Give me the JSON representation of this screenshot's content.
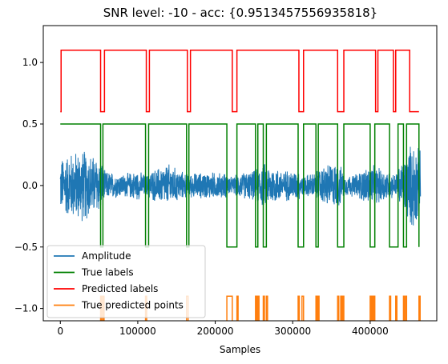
{
  "chart_data": {
    "type": "line",
    "title": "SNR level: -10 - acc: {0.9513457556935818}",
    "xlabel": "Samples",
    "ylabel": "",
    "xlim": [
      -22000,
      486000
    ],
    "ylim": [
      -1.1,
      1.3
    ],
    "grid": false,
    "legend_position": "lower-left",
    "x_ticks": [
      0,
      100000,
      200000,
      300000,
      400000
    ],
    "x_tick_labels": [
      "0",
      "100000",
      "200000",
      "300000",
      "400000"
    ],
    "y_ticks": [
      -1.0,
      -0.5,
      0.0,
      0.5,
      1.0
    ],
    "y_tick_labels": [
      "−1.0",
      "−0.5",
      "0.0",
      "0.5",
      "1.0"
    ],
    "series": [
      {
        "name": "Amplitude",
        "color": "#1f77b4",
        "style": "noise",
        "x_range": [
          0,
          465000
        ],
        "envelope": [
          [
            0,
            0.24
          ],
          [
            15000,
            0.3
          ],
          [
            30000,
            0.32
          ],
          [
            45000,
            0.26
          ],
          [
            52000,
            0.24
          ],
          [
            57000,
            0.13
          ],
          [
            80000,
            0.1
          ],
          [
            100000,
            0.13
          ],
          [
            112000,
            0.09
          ],
          [
            116000,
            0.13
          ],
          [
            140000,
            0.19
          ],
          [
            155000,
            0.13
          ],
          [
            165000,
            0.1
          ],
          [
            170000,
            0.11
          ],
          [
            190000,
            0.12
          ],
          [
            215000,
            0.11
          ],
          [
            222000,
            0.07
          ],
          [
            230000,
            0.11
          ],
          [
            250000,
            0.13
          ],
          [
            262000,
            0.2
          ],
          [
            285000,
            0.14
          ],
          [
            308000,
            0.13
          ],
          [
            313000,
            0.09
          ],
          [
            330000,
            0.12
          ],
          [
            345000,
            0.2
          ],
          [
            360000,
            0.2
          ],
          [
            367000,
            0.09
          ],
          [
            380000,
            0.1
          ],
          [
            400000,
            0.18
          ],
          [
            420000,
            0.14
          ],
          [
            432000,
            0.1
          ],
          [
            445000,
            0.26
          ],
          [
            455000,
            0.4
          ],
          [
            465000,
            0.3
          ]
        ]
      },
      {
        "name": "True labels",
        "color": "#008000",
        "style": "step",
        "points": [
          [
            0,
            0.5
          ],
          [
            52000,
            0.5
          ],
          [
            52000,
            -0.5
          ],
          [
            55000,
            -0.5
          ],
          [
            55000,
            0.5
          ],
          [
            110000,
            0.5
          ],
          [
            110000,
            -0.5
          ],
          [
            114000,
            -0.5
          ],
          [
            114000,
            0.5
          ],
          [
            163000,
            0.5
          ],
          [
            163000,
            -0.5
          ],
          [
            166000,
            -0.5
          ],
          [
            166000,
            0.5
          ],
          [
            215000,
            0.5
          ],
          [
            215000,
            -0.5
          ],
          [
            228000,
            -0.5
          ],
          [
            228000,
            0.5
          ],
          [
            252000,
            0.5
          ],
          [
            252000,
            -0.5
          ],
          [
            255000,
            -0.5
          ],
          [
            255000,
            0.5
          ],
          [
            262000,
            0.5
          ],
          [
            262000,
            -0.5
          ],
          [
            266000,
            -0.5
          ],
          [
            266000,
            0.5
          ],
          [
            307000,
            0.5
          ],
          [
            307000,
            -0.5
          ],
          [
            314000,
            -0.5
          ],
          [
            314000,
            0.5
          ],
          [
            330000,
            0.5
          ],
          [
            330000,
            -0.5
          ],
          [
            333000,
            -0.5
          ],
          [
            333000,
            0.5
          ],
          [
            358000,
            0.5
          ],
          [
            358000,
            -0.5
          ],
          [
            366000,
            -0.5
          ],
          [
            366000,
            0.5
          ],
          [
            400000,
            0.5
          ],
          [
            400000,
            -0.5
          ],
          [
            406000,
            -0.5
          ],
          [
            406000,
            0.5
          ],
          [
            425000,
            0.5
          ],
          [
            425000,
            -0.5
          ],
          [
            436000,
            -0.5
          ],
          [
            436000,
            0.5
          ],
          [
            443000,
            0.5
          ],
          [
            443000,
            -0.5
          ],
          [
            447000,
            -0.5
          ],
          [
            447000,
            0.5
          ],
          [
            463000,
            0.5
          ],
          [
            463000,
            -0.5
          ]
        ]
      },
      {
        "name": "Predicted labels",
        "color": "#ff0000",
        "style": "step",
        "points": [
          [
            0,
            0.6
          ],
          [
            1000,
            0.6
          ],
          [
            1000,
            1.1
          ],
          [
            52000,
            1.1
          ],
          [
            52000,
            0.6
          ],
          [
            57000,
            0.6
          ],
          [
            57000,
            1.1
          ],
          [
            111000,
            1.1
          ],
          [
            111000,
            0.6
          ],
          [
            115000,
            0.6
          ],
          [
            115000,
            1.1
          ],
          [
            164000,
            1.1
          ],
          [
            164000,
            0.6
          ],
          [
            168000,
            0.6
          ],
          [
            168000,
            1.1
          ],
          [
            222000,
            1.1
          ],
          [
            222000,
            0.6
          ],
          [
            228000,
            0.6
          ],
          [
            228000,
            1.1
          ],
          [
            308000,
            1.1
          ],
          [
            308000,
            0.6
          ],
          [
            314000,
            0.6
          ],
          [
            314000,
            1.1
          ],
          [
            358000,
            1.1
          ],
          [
            358000,
            0.6
          ],
          [
            366000,
            0.6
          ],
          [
            366000,
            1.1
          ],
          [
            407000,
            1.1
          ],
          [
            407000,
            0.6
          ],
          [
            410000,
            0.6
          ],
          [
            410000,
            1.1
          ],
          [
            430000,
            1.1
          ],
          [
            430000,
            0.6
          ],
          [
            433000,
            0.6
          ],
          [
            433000,
            1.1
          ],
          [
            451000,
            1.1
          ],
          [
            451000,
            0.6
          ],
          [
            463000,
            0.6
          ]
        ]
      },
      {
        "name": "True predicted points",
        "color": "#ff7f0e",
        "style": "pulses",
        "base": -1.1,
        "top": -0.9,
        "pulses": [
          [
            52000,
            53500
          ],
          [
            55000,
            56500
          ],
          [
            110000,
            111500
          ],
          [
            163000,
            165000
          ],
          [
            215000,
            222000
          ],
          [
            228000,
            229500
          ],
          [
            252000,
            253500
          ],
          [
            255000,
            256500
          ],
          [
            262000,
            263500
          ],
          [
            266000,
            267500
          ],
          [
            307000,
            308500
          ],
          [
            312000,
            314000
          ],
          [
            330000,
            331500
          ],
          [
            332500,
            334000
          ],
          [
            358000,
            359500
          ],
          [
            362000,
            363500
          ],
          [
            364500,
            366000
          ],
          [
            400000,
            401000
          ],
          [
            402000,
            403000
          ],
          [
            404500,
            406000
          ],
          [
            425000,
            426500
          ],
          [
            433000,
            434500
          ],
          [
            443000,
            444500
          ],
          [
            446000,
            447000
          ],
          [
            463000,
            464500
          ]
        ]
      }
    ]
  }
}
